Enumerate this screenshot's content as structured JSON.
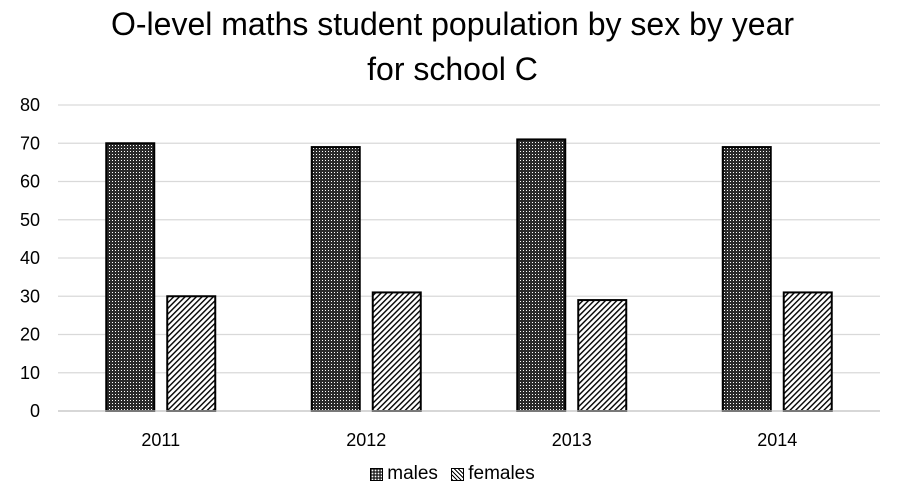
{
  "chart_data": {
    "type": "bar",
    "title_line1": "O-level maths student population by sex by year",
    "title_line2": "for school C",
    "categories": [
      "2011",
      "2012",
      "2013",
      "2014"
    ],
    "series": [
      {
        "name": "males",
        "values": [
          70,
          69,
          71,
          69
        ]
      },
      {
        "name": "females",
        "values": [
          30,
          31,
          29,
          31
        ]
      }
    ],
    "ylim": [
      0,
      80
    ],
    "yticks": [
      0,
      10,
      20,
      30,
      40,
      50,
      60,
      70,
      80
    ],
    "xlabel": "",
    "ylabel": "",
    "grid": true,
    "legend_position": "bottom",
    "colors": {
      "axis": "#000000",
      "grid": "#d9d9d9",
      "bar_outline": "#000000"
    }
  }
}
